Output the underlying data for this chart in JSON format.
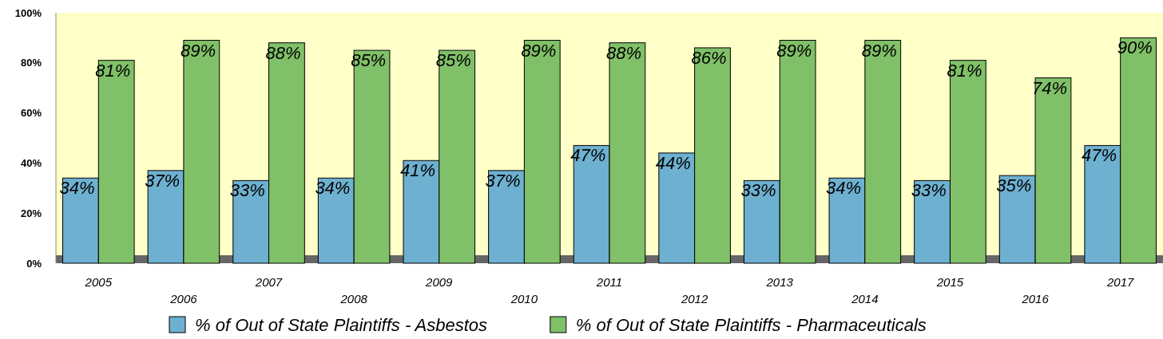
{
  "chart_data": {
    "type": "bar",
    "categories": [
      "2005",
      "2006",
      "2007",
      "2008",
      "2009",
      "2010",
      "2011",
      "2012",
      "2013",
      "2014",
      "2015",
      "2016",
      "2017"
    ],
    "series": [
      {
        "name": "% of Out of State Plaintiffs - Asbestos",
        "color": "#6eb0d0",
        "values": [
          34,
          37,
          33,
          34,
          41,
          37,
          47,
          44,
          33,
          34,
          33,
          35,
          47
        ],
        "value_labels": [
          "34%",
          "37%",
          "33%",
          "34%",
          "41%",
          "37%",
          "47%",
          "44%",
          "33%",
          "34%",
          "33%",
          "35%",
          "47%"
        ]
      },
      {
        "name": "% of Out of State Plaintiffs - Pharmaceuticals",
        "color": "#80c068",
        "values": [
          81,
          89,
          88,
          85,
          85,
          89,
          88,
          86,
          89,
          89,
          81,
          74,
          90
        ],
        "value_labels": [
          "81%",
          "89%",
          "88%",
          "85%",
          "85%",
          "89%",
          "88%",
          "86%",
          "89%",
          "89%",
          "81%",
          "74%",
          "90%"
        ]
      }
    ],
    "ylim": [
      0,
      100
    ],
    "yticks": [
      {
        "value": 0,
        "label": "0%"
      },
      {
        "value": 20,
        "label": "20%"
      },
      {
        "value": 40,
        "label": "40%"
      },
      {
        "value": 60,
        "label": "60%"
      },
      {
        "value": 80,
        "label": "80%"
      },
      {
        "value": 100,
        "label": "100%"
      }
    ],
    "legend": "bottom"
  }
}
